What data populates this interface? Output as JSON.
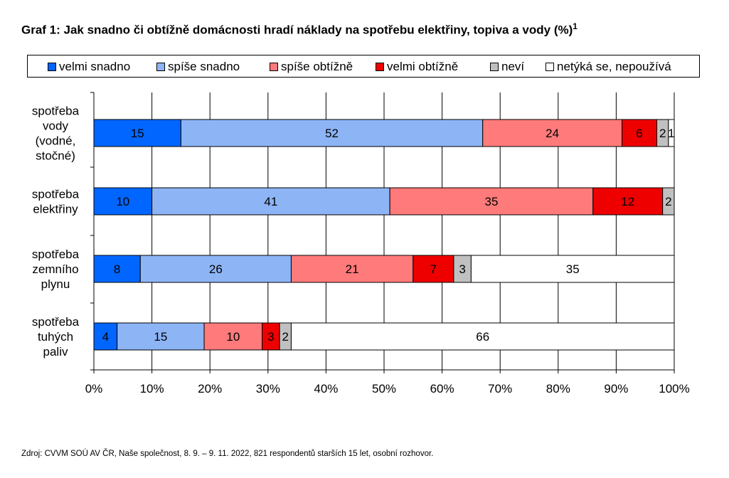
{
  "title": "Graf 1: Jak snadno či obtížně domácnosti hradí náklady na spotřebu elektřiny, topiva a vody (%)",
  "title_sup": "1",
  "source": "Zdroj: CVVM SOÚ AV ČR, Naše společnost, 8. 9. – 9. 11. 2022, 821 respondentů starších 15 let, osobní rozhovor.",
  "chart_data": {
    "type": "bar",
    "orientation": "horizontal",
    "stacked": true,
    "categories": [
      [
        "spotřeba",
        "vody",
        "(vodné,",
        "stočné)"
      ],
      [
        "spotřeba",
        "elektřiny"
      ],
      [
        "spotřeba",
        "zemního",
        "plynu"
      ],
      [
        "spotřeba",
        "tuhých",
        "paliv"
      ]
    ],
    "series": [
      {
        "name": "velmi snadno",
        "color": "#0066ff",
        "values": [
          15,
          10,
          8,
          4
        ]
      },
      {
        "name": "spíše snadno",
        "color": "#8db4f5",
        "values": [
          52,
          41,
          26,
          15
        ]
      },
      {
        "name": "spíše obtížně",
        "color": "#ff7a7a",
        "values": [
          24,
          35,
          21,
          10
        ]
      },
      {
        "name": "velmi obtížně",
        "color": "#ee0000",
        "values": [
          6,
          12,
          7,
          3
        ]
      },
      {
        "name": "neví",
        "color": "#c0c0c0",
        "values": [
          2,
          2,
          3,
          2
        ]
      },
      {
        "name": "netýká se, nepoužívá",
        "color": "#ffffff",
        "values": [
          1,
          0,
          35,
          66
        ]
      }
    ],
    "xlim": [
      0,
      100
    ],
    "xticks": [
      "0%",
      "10%",
      "20%",
      "30%",
      "40%",
      "50%",
      "60%",
      "70%",
      "80%",
      "90%",
      "100%"
    ],
    "grid": "vertical",
    "legend_position": "top"
  }
}
